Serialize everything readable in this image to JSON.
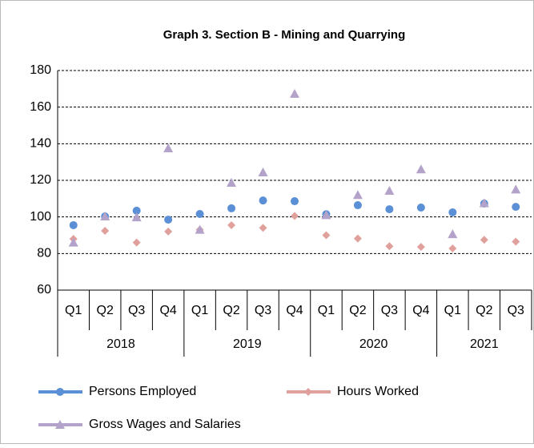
{
  "chart_data": {
    "type": "line",
    "title": "Graph 3. Section B - Mining and Quarrying",
    "categories": [
      "Q1",
      "Q2",
      "Q3",
      "Q4",
      "Q1",
      "Q2",
      "Q3",
      "Q4",
      "Q1",
      "Q2",
      "Q3",
      "Q4",
      "Q1",
      "Q2",
      "Q3"
    ],
    "x_groups": [
      {
        "label": "2018",
        "span": 4
      },
      {
        "label": "2019",
        "span": 4
      },
      {
        "label": "2020",
        "span": 4
      },
      {
        "label": "2021",
        "span": 3
      }
    ],
    "series": [
      {
        "name": "Persons Employed",
        "color": "#5b8fd6",
        "marker": "circle",
        "values": [
          95.5,
          100.3,
          103.4,
          98.5,
          101.6,
          104.7,
          109,
          108.6,
          101.5,
          106.4,
          104.2,
          105.1,
          102.5,
          107.3,
          105.5
        ]
      },
      {
        "name": "Hours Worked",
        "color": "#e0a09c",
        "marker": "diamond",
        "values": [
          88,
          92.4,
          86,
          92,
          93,
          95.5,
          94,
          100.5,
          90,
          88.2,
          84,
          83.6,
          82.8,
          87.5,
          86.5
        ]
      },
      {
        "name": "Gross Wages and Salaries",
        "color": "#b3a2c9",
        "marker": "triangle",
        "values": [
          86,
          100.3,
          99.8,
          137.5,
          93,
          118.7,
          124.4,
          167.3,
          101,
          112,
          114.3,
          126,
          90.6,
          107.5,
          115
        ]
      }
    ],
    "ylim": [
      60,
      180
    ],
    "yticks": [
      60,
      80,
      100,
      120,
      140,
      160,
      180
    ],
    "grid": true
  }
}
